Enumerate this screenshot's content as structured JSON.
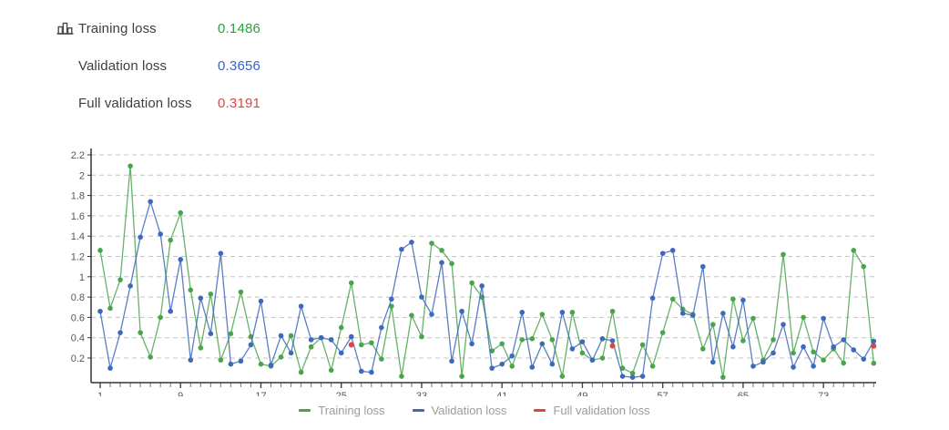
{
  "header": {
    "rows": [
      {
        "label": "Training loss",
        "value": "0.1486",
        "color": "#2e9e40",
        "icon": "bar-chart-icon"
      },
      {
        "label": "Validation loss",
        "value": "0.3656",
        "color": "#3b62c4",
        "icon": null
      },
      {
        "label": "Full validation loss",
        "value": "0.3191",
        "color": "#d9473f",
        "icon": null
      }
    ]
  },
  "chart_data": {
    "type": "line",
    "title": "",
    "xlabel": "",
    "ylabel": "",
    "xlim": [
      1,
      78
    ],
    "ylim": [
      0,
      2.3
    ],
    "grid": "horizontal-dashed",
    "legend_position": "bottom-center",
    "ytick_labels": [
      "0.2",
      "0.4",
      "0.6",
      "0.8",
      "1",
      "1.2",
      "1.4",
      "1.6",
      "1.8",
      "2",
      "2.2"
    ],
    "ytick_values": [
      0.2,
      0.4,
      0.6,
      0.8,
      1.0,
      1.2,
      1.4,
      1.6,
      1.8,
      2.0,
      2.2
    ],
    "xtick_minor_every": 1,
    "xtick_labels": [
      "1",
      "9",
      "17",
      "25",
      "33",
      "41",
      "49",
      "57",
      "65",
      "73"
    ],
    "xtick_label_values": [
      1,
      9,
      17,
      25,
      33,
      41,
      49,
      57,
      65,
      73
    ],
    "series": [
      {
        "name": "Training loss",
        "color": "#4aa44e",
        "values": [
          1.26,
          0.69,
          0.97,
          2.09,
          0.45,
          0.21,
          0.6,
          1.36,
          1.63,
          0.87,
          0.3,
          0.83,
          0.18,
          0.44,
          0.85,
          0.41,
          0.14,
          0.12,
          0.21,
          0.42,
          0.06,
          0.31,
          0.4,
          0.08,
          0.5,
          0.94,
          0.33,
          0.35,
          0.19,
          0.71,
          0.02,
          0.62,
          0.41,
          1.33,
          1.26,
          1.13,
          0.02,
          0.94,
          0.8,
          0.27,
          0.34,
          0.12,
          0.38,
          0.39,
          0.63,
          0.38,
          0.02,
          0.65,
          0.25,
          0.18,
          0.2,
          0.66,
          0.1,
          0.05,
          0.33,
          0.12,
          0.45,
          0.78,
          0.68,
          0.63,
          0.29,
          0.53,
          0.01,
          0.78,
          0.37,
          0.59,
          0.18,
          0.38,
          1.22,
          0.25,
          0.6,
          0.26,
          0.18,
          0.29,
          0.15,
          1.26,
          1.1,
          0.1486
        ]
      },
      {
        "name": "Validation loss",
        "color": "#3c69bb",
        "values": [
          0.66,
          0.1,
          0.45,
          0.91,
          1.39,
          1.74,
          1.42,
          0.66,
          1.17,
          0.18,
          0.79,
          0.44,
          1.23,
          0.14,
          0.17,
          0.33,
          0.76,
          0.13,
          0.42,
          0.25,
          0.71,
          0.38,
          0.4,
          0.38,
          0.25,
          0.41,
          0.07,
          0.06,
          0.5,
          0.78,
          1.27,
          1.34,
          0.8,
          0.63,
          1.14,
          0.17,
          0.66,
          0.34,
          0.91,
          0.1,
          0.14,
          0.22,
          0.65,
          0.11,
          0.34,
          0.14,
          0.65,
          0.29,
          0.36,
          0.18,
          0.39,
          0.37,
          0.02,
          0.01,
          0.02,
          0.79,
          1.23,
          1.26,
          0.64,
          0.62,
          1.1,
          0.16,
          0.64,
          0.31,
          0.77,
          0.12,
          0.16,
          0.25,
          0.53,
          0.11,
          0.31,
          0.12,
          0.59,
          0.31,
          0.38,
          0.28,
          0.19,
          0.3656
        ]
      },
      {
        "name": "Full validation loss",
        "color": "#d9473f",
        "points": [
          {
            "epoch": 26,
            "value": 0.33
          },
          {
            "epoch": 52,
            "value": 0.32
          },
          {
            "epoch": 78,
            "value": 0.3191
          }
        ]
      }
    ]
  },
  "legend": {
    "items": [
      {
        "label": "Training loss",
        "color": "#4aa44e"
      },
      {
        "label": "Validation loss",
        "color": "#3c69bb"
      },
      {
        "label": "Full validation loss",
        "color": "#d9473f"
      }
    ]
  }
}
